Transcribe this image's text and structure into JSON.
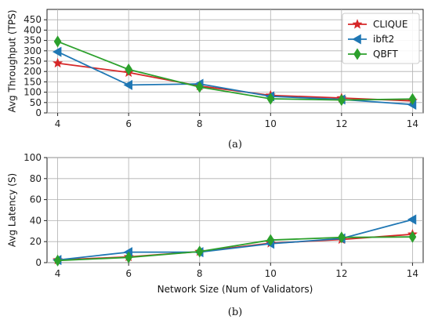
{
  "chart_data": [
    {
      "type": "line",
      "caption": "(a)",
      "ylabel": "Avg Throughput (TPS)",
      "xlabel": "",
      "x": [
        4,
        6,
        8,
        10,
        12,
        14
      ],
      "xticks": [
        "4",
        "6",
        "8",
        "10",
        "12",
        "14"
      ],
      "ylim": [
        0,
        500
      ],
      "yticks": [
        "0",
        "50",
        "100",
        "150",
        "200",
        "250",
        "300",
        "350",
        "400",
        "450"
      ],
      "grid": true,
      "legend": "top-right",
      "series": [
        {
          "name": "CLIQUE",
          "color": "#d62728",
          "marker": "star",
          "values": [
            240,
            195,
            130,
            85,
            72,
            58
          ]
        },
        {
          "name": "ibft2",
          "color": "#1f77b4",
          "marker": "triangle-left",
          "values": [
            295,
            135,
            140,
            80,
            65,
            40
          ]
        },
        {
          "name": "QBFT",
          "color": "#2ca02c",
          "marker": "diamond",
          "values": [
            345,
            210,
            125,
            68,
            62,
            67
          ]
        }
      ]
    },
    {
      "type": "line",
      "caption": "(b)",
      "ylabel": "Avg Latency (S)",
      "xlabel": "Network Size (Num of Validators)",
      "x": [
        4,
        6,
        8,
        10,
        12,
        14
      ],
      "xticks": [
        "4",
        "6",
        "8",
        "10",
        "12",
        "14"
      ],
      "ylim": [
        0,
        100
      ],
      "yticks": [
        "0",
        "20",
        "40",
        "60",
        "80",
        "100"
      ],
      "grid": true,
      "legend": "none",
      "series": [
        {
          "color": "#d62728",
          "marker": "star",
          "values": [
            2.5,
            5.5,
            10.5,
            18.5,
            22,
            27
          ]
        },
        {
          "color": "#1f77b4",
          "marker": "triangle-left",
          "values": [
            2.5,
            10,
            10,
            18,
            23,
            41
          ]
        },
        {
          "color": "#2ca02c",
          "marker": "diamond",
          "values": [
            2,
            5,
            10.5,
            21.5,
            24,
            24.5
          ]
        }
      ]
    }
  ]
}
